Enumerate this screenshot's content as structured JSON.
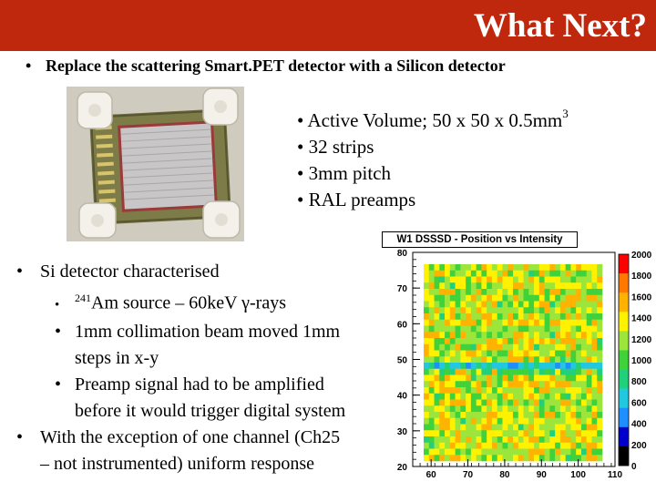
{
  "header": {
    "title": "What Next?"
  },
  "top_bullet": {
    "marker": "•",
    "text": "Replace the scattering Smart.PET detector with a Silicon detector"
  },
  "specs": {
    "items": [
      {
        "marker": "•",
        "text": "Active Volume; 50 x 50 x 0.5mm",
        "sup": "3"
      },
      {
        "marker": "•",
        "text": "32 strips"
      },
      {
        "marker": "•",
        "text": "3mm pitch"
      },
      {
        "marker": "•",
        "text": "RAL preamps"
      }
    ]
  },
  "characterisation": {
    "main1": {
      "marker": "•",
      "text": "Si detector characterised"
    },
    "sub1": {
      "marker": "•",
      "sup": "241",
      "text": "Am source – 60keV γ-rays"
    },
    "sub2": {
      "marker": "•",
      "text": "1mm collimation beam moved 1mm",
      "cont": "steps in  x-y"
    },
    "sub3": {
      "marker": "•",
      "text": "Preamp signal had to be amplified",
      "cont": "before it would trigger digital system"
    },
    "main2": {
      "marker": "•",
      "text": "With the exception of one channel (Ch25",
      "cont": "– not instrumented) uniform response"
    }
  },
  "chart_data": {
    "type": "heatmap",
    "title": "W1 DSSSD - Position vs Intensity",
    "xlim": [
      55,
      110
    ],
    "ylim": [
      20,
      80
    ],
    "x_ticks": [
      "60",
      "70",
      "80",
      "90",
      "100",
      "110"
    ],
    "y_ticks": [
      "20",
      "30",
      "40",
      "50",
      "60",
      "70",
      "80"
    ],
    "colorbar": {
      "range": [
        0,
        2000
      ],
      "labels": [
        "0",
        "200",
        "400",
        "600",
        "800",
        "1000",
        "1200",
        "1400",
        "1600",
        "1800",
        "2000"
      ],
      "colors": [
        "#000000",
        "#0000cc",
        "#1f8fff",
        "#22c8e0",
        "#21d07a",
        "#3fd23a",
        "#9ce53a",
        "#fff200",
        "#ffb300",
        "#ff7800",
        "#ff0000"
      ]
    },
    "note": "Mostly uniform response (yellow/orange ~1400-1800) with a low-response channel stripe near y≈50"
  }
}
